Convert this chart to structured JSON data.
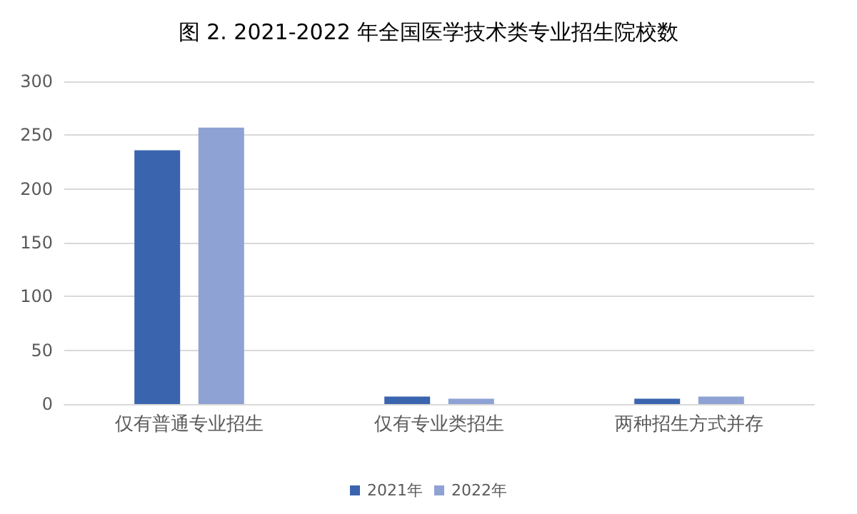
{
  "chart_data": {
    "type": "bar",
    "title": "图 2. 2021-2022 年全国医学技术类专业招生院校数",
    "categories": [
      "仅有普通专业招生",
      "仅有专业类招生",
      "两种招生方式并存"
    ],
    "series": [
      {
        "name": "2021年",
        "color": "#3a64ad",
        "values": [
          236,
          7,
          5
        ]
      },
      {
        "name": "2022年",
        "color": "#8fa2d4",
        "values": [
          257,
          5,
          7
        ]
      }
    ],
    "ylim": [
      0,
      300
    ],
    "yticks": [
      0,
      50,
      100,
      150,
      200,
      250,
      300
    ],
    "grid": "y",
    "legend": "bottom"
  }
}
